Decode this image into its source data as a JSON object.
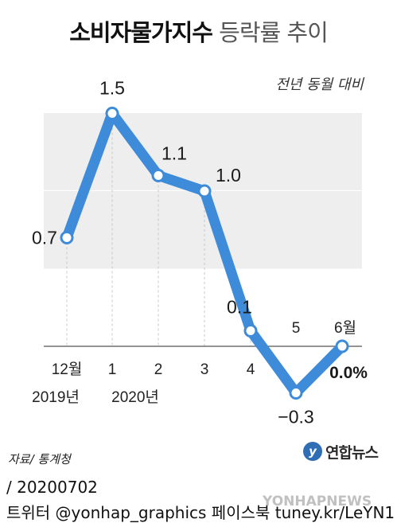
{
  "header": {
    "title_bold": "소비자물가지수",
    "title_light": "등락률 추이",
    "subtitle": "전년 동월 대비"
  },
  "chart_data": {
    "type": "line",
    "title": "소비자물가지수 등락률 추이",
    "subtitle": "전년 동월 대비",
    "categories": [
      "12월",
      "1",
      "2",
      "3",
      "4",
      "5",
      "6월"
    ],
    "year_labels": [
      "2019년",
      "2020년"
    ],
    "values": [
      0.7,
      1.5,
      1.1,
      1.0,
      0.1,
      -0.3,
      0.0
    ],
    "data_labels": [
      "0.7",
      "1.5",
      "1.1",
      "1.0",
      "0.1",
      "−0.3",
      "0.0%"
    ],
    "ylim": [
      -0.5,
      2.0
    ],
    "line_color": "#3d8bd9",
    "band_color": "#eeeeee"
  },
  "footer": {
    "source": "자료/ 통계청",
    "logo_text": "연합뉴스",
    "date_line": "/ 20200702",
    "sns_line": "트위터 @yonhap_graphics  페이스북 tuney.kr/LeYN1",
    "watermark": "YONHAPNEWS"
  }
}
